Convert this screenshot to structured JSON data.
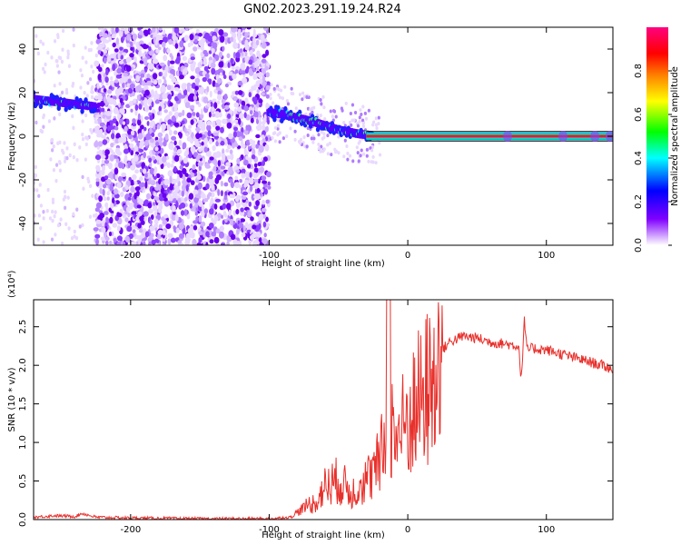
{
  "title": "GN02.2023.291.19.24.R24",
  "chart_data": [
    {
      "type": "heatmap",
      "xlabel": "Height of straight line (km)",
      "ylabel": "Frequency (Hz)",
      "xlim": [
        -270,
        148
      ],
      "ylim": [
        -50,
        50
      ],
      "x_ticks": [
        -200,
        -100,
        0,
        100
      ],
      "y_ticks": [
        -40,
        -20,
        0,
        20,
        40
      ],
      "colorbar": {
        "label": "Normalized spectral amplitude",
        "range": [
          0,
          1
        ],
        "ticks": [
          "0.0",
          "0.2",
          "0.4",
          "0.6",
          "0.8"
        ],
        "colors": [
          "#ffffff",
          "#8000ff",
          "#0000ff",
          "#00ffff",
          "#00ff00",
          "#ffff00",
          "#ff8000",
          "#ff0000",
          "#ff0080"
        ]
      },
      "ridge": {
        "x": [
          -270,
          -230,
          -220,
          -100,
          -90,
          -70,
          -50,
          -35,
          -20,
          -10,
          0,
          50,
          100,
          148
        ],
        "y": [
          17,
          14,
          13,
          11,
          10,
          7,
          3,
          1,
          0,
          0,
          0,
          0,
          0,
          0
        ]
      },
      "noise_band_x": [
        -225,
        -100
      ],
      "tone_line": {
        "x_start": -30,
        "x_end": 148,
        "frequency": 0
      }
    },
    {
      "type": "line",
      "xlabel": "Height of straight line (km)",
      "ylabel": "SNR (10 * v/v)",
      "y_multiplier": "(x10⁴)",
      "xlim": [
        -270,
        148
      ],
      "ylim": [
        0,
        2.85
      ],
      "x_ticks": [
        -200,
        -100,
        0,
        100
      ],
      "y_ticks": [
        "0.0",
        "0.5",
        "1.0",
        "1.5",
        "2.0",
        "2.5"
      ],
      "color": "#e8302b",
      "series": [
        {
          "x": [
            -270,
            -255,
            -240,
            -235,
            -225,
            -200,
            -150,
            -100,
            -85,
            -75,
            -65,
            -60,
            -55,
            -50,
            -45,
            -40,
            -35,
            -30,
            -25,
            -20,
            -15,
            -12,
            -10,
            -5,
            0,
            5,
            10,
            15,
            20,
            25,
            30,
            40,
            50,
            60,
            70,
            80,
            82,
            84,
            86,
            90,
            100,
            110,
            120,
            130,
            140,
            148
          ],
          "y": [
            0.03,
            0.05,
            0.04,
            0.08,
            0.03,
            0.02,
            0.01,
            0.01,
            0.03,
            0.15,
            0.3,
            0.5,
            0.55,
            0.6,
            0.5,
            0.4,
            0.55,
            0.6,
            0.7,
            0.9,
            1.3,
            1.5,
            1.25,
            1.35,
            1.5,
            1.7,
            1.85,
            2.0,
            2.1,
            2.2,
            2.3,
            2.38,
            2.35,
            2.3,
            2.28,
            2.25,
            1.8,
            2.6,
            2.2,
            2.22,
            2.2,
            2.15,
            2.1,
            2.05,
            2.0,
            1.95
          ]
        }
      ]
    }
  ]
}
